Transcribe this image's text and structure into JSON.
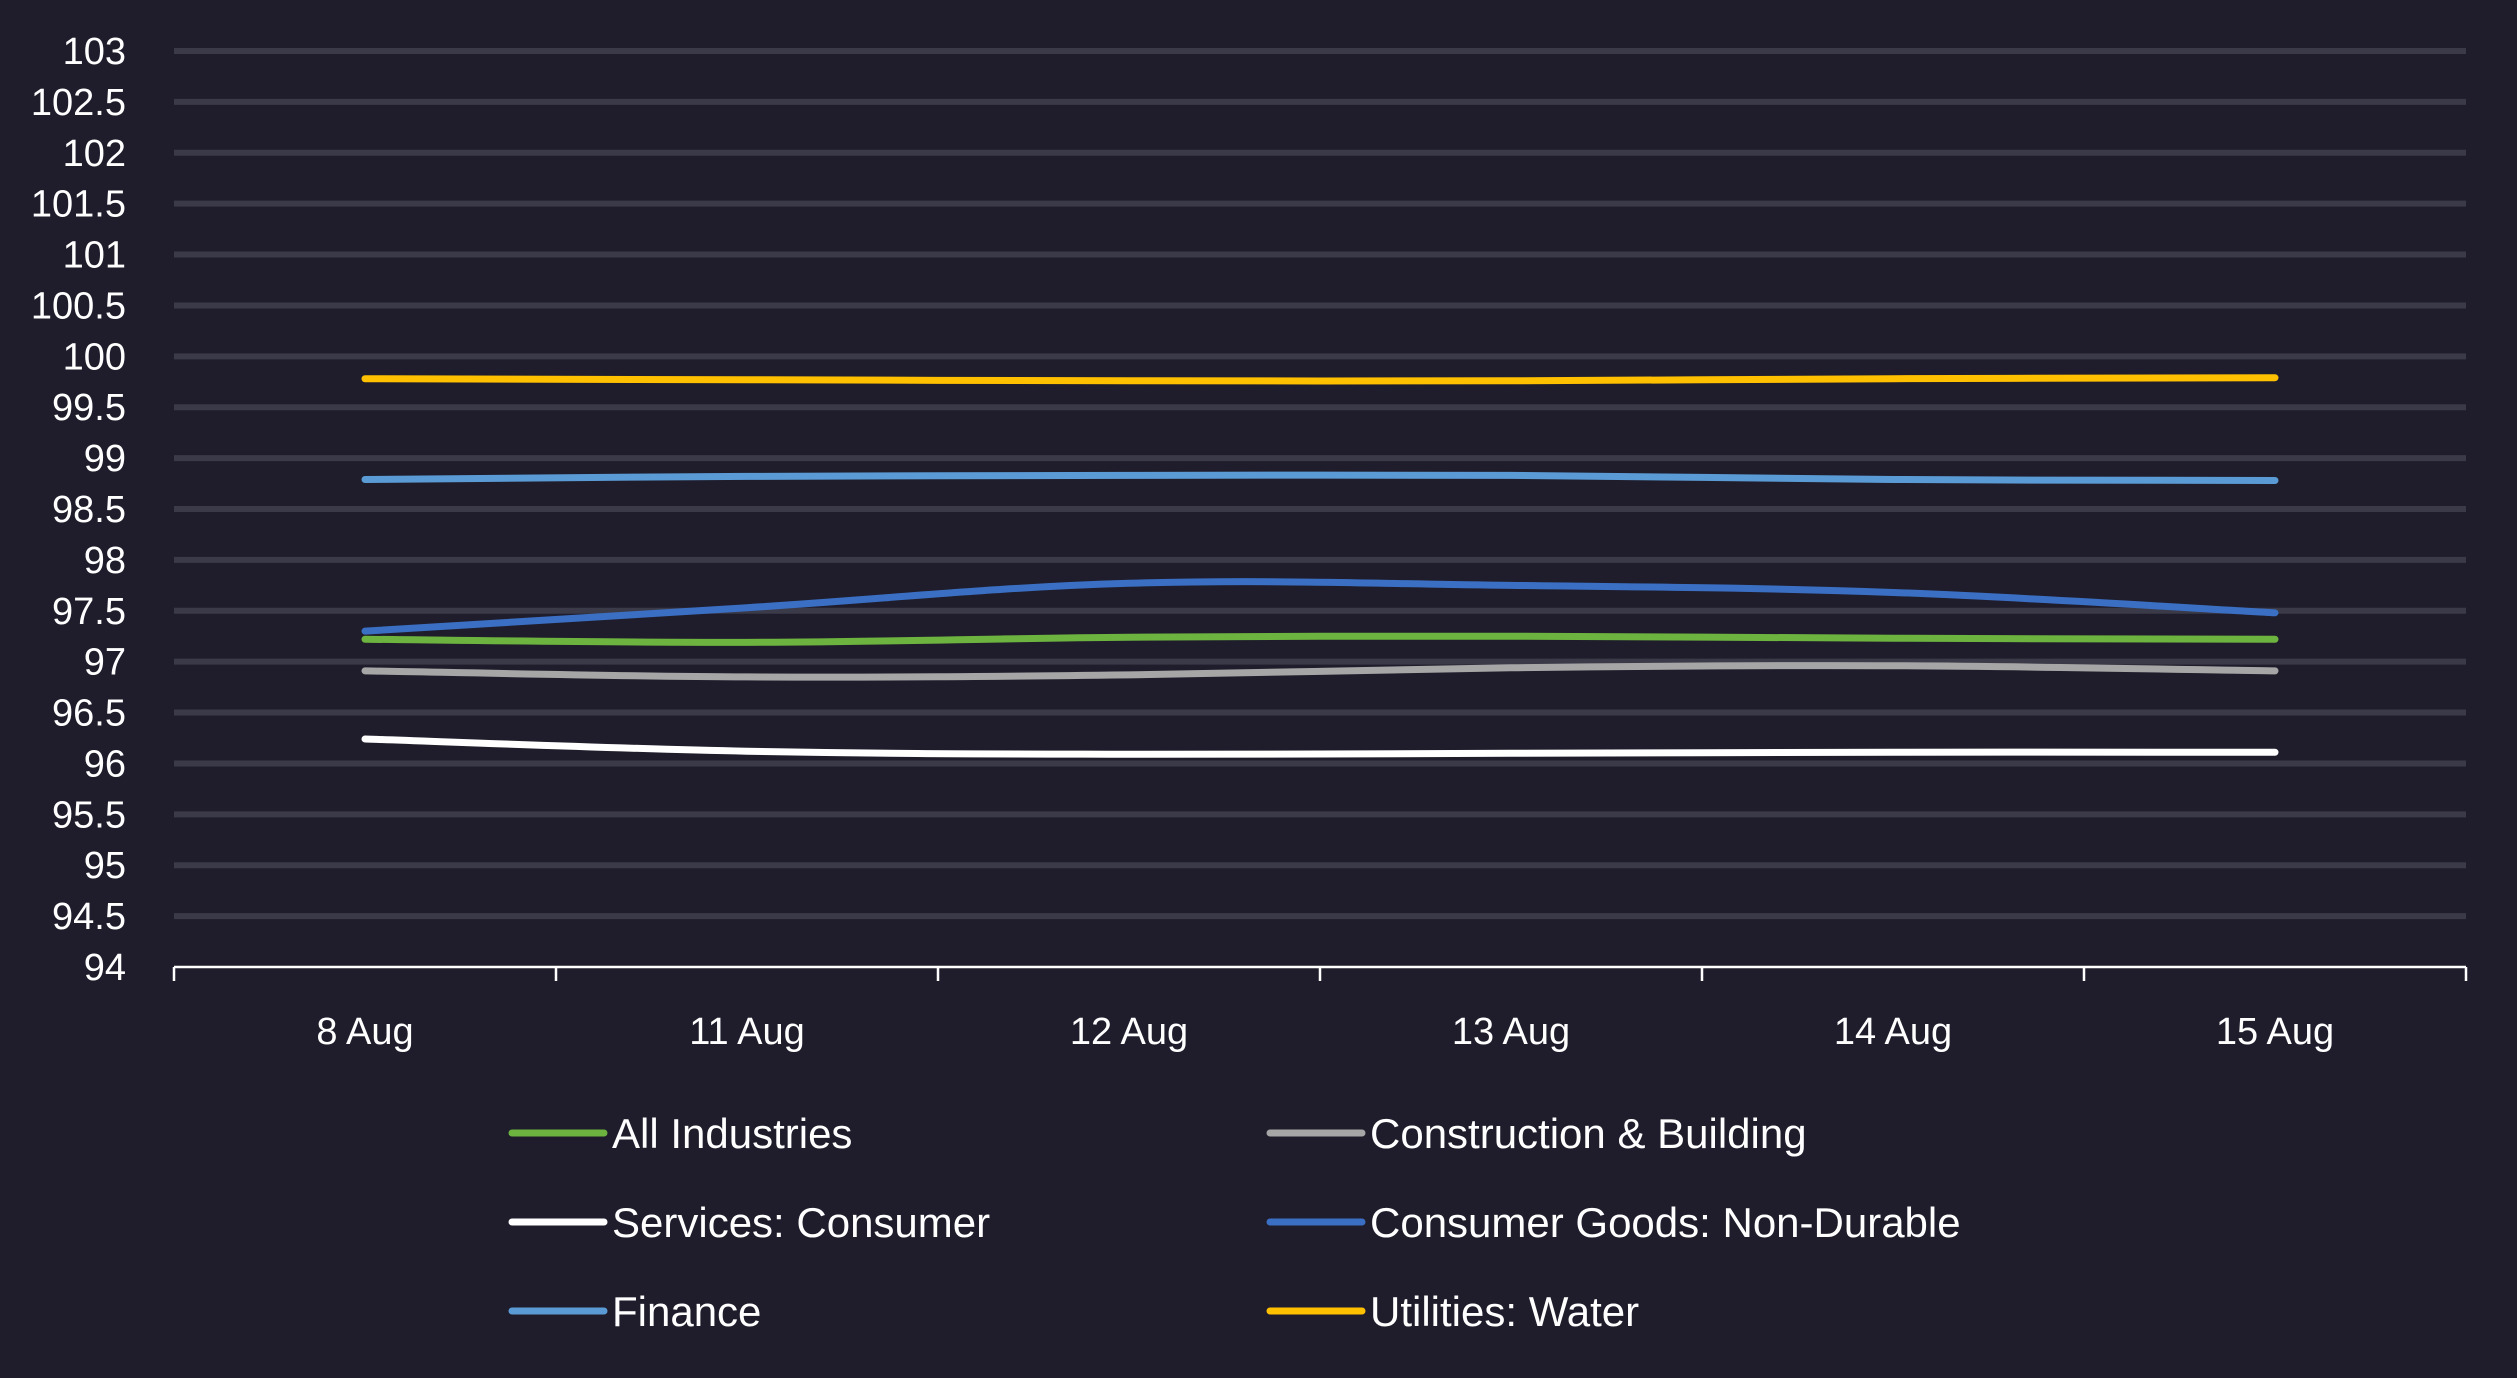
{
  "chart_data": {
    "type": "line",
    "categories": [
      "8 Aug",
      "11 Aug",
      "12 Aug",
      "13 Aug",
      "14 Aug",
      "15 Aug"
    ],
    "ylim": [
      94,
      103
    ],
    "y_ticks": [
      "94",
      "94.5",
      "95",
      "95.5",
      "96",
      "96.5",
      "97",
      "97.5",
      "98",
      "98.5",
      "99",
      "99.5",
      "100",
      "100.5",
      "101",
      "101.5",
      "102",
      "102.5",
      "103"
    ],
    "grid": true,
    "legend_position": "bottom",
    "series": [
      {
        "name": "All Industries",
        "color": "#6db33f",
        "values": [
          97.22,
          97.19,
          97.24,
          97.25,
          97.23,
          97.22
        ]
      },
      {
        "name": "Construction & Building",
        "color": "#a6a6a6",
        "values": [
          96.91,
          96.85,
          96.87,
          96.94,
          96.96,
          96.91
        ]
      },
      {
        "name": "Services: Consumer",
        "color": "#ffffff",
        "values": [
          96.24,
          96.12,
          96.09,
          96.1,
          96.11,
          96.11
        ]
      },
      {
        "name": "Consumer Goods: Non-Durable",
        "color": "#3a6fc4",
        "values": [
          97.3,
          97.53,
          97.77,
          97.75,
          97.68,
          97.48
        ]
      },
      {
        "name": "Finance",
        "color": "#5b9bd5",
        "values": [
          98.79,
          98.82,
          98.83,
          98.83,
          98.79,
          98.78
        ]
      },
      {
        "name": "Utilities: Water",
        "color": "#ffc000",
        "values": [
          99.78,
          99.77,
          99.76,
          99.76,
          99.78,
          99.79
        ]
      }
    ]
  }
}
